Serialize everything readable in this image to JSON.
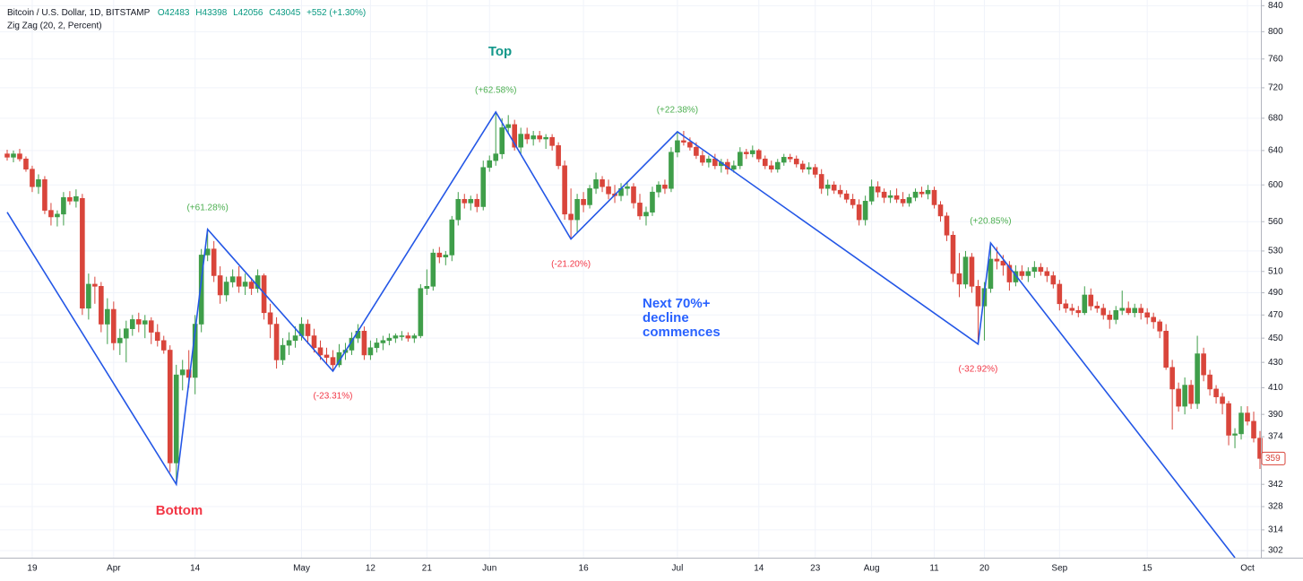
{
  "chart_data": {
    "type": "candlestick",
    "header": {
      "title": "Bitcoin / U.S. Dollar, 1D, BITSTAMP",
      "ohlc": [
        "O42483",
        "H43398",
        "L42056",
        "C43045"
      ],
      "change": "+552 (+1.30%)"
    },
    "annotations": {
      "top": "Top",
      "bottom": "Bottom",
      "note": [
        "Next 70%+",
        "decline",
        "commences"
      ]
    },
    "log_scale": true,
    "grid": true,
    "up_color": "#3f9e4a",
    "down_color": "#d9453b",
    "ylim": [
      298,
      849
    ],
    "yticks": [
      302,
      314,
      328,
      342,
      374,
      390,
      410,
      430,
      450,
      470,
      490,
      510,
      530,
      560,
      600,
      640,
      680,
      720,
      760,
      800,
      840
    ],
    "categories": [
      null,
      null,
      null,
      null,
      "19",
      null,
      null,
      null,
      null,
      null,
      null,
      null,
      null,
      null,
      null,
      null,
      null,
      "Apr",
      null,
      null,
      null,
      null,
      null,
      null,
      null,
      null,
      null,
      null,
      null,
      null,
      "14",
      null,
      null,
      null,
      null,
      null,
      null,
      null,
      null,
      null,
      null,
      null,
      null,
      null,
      null,
      null,
      null,
      "May",
      null,
      null,
      null,
      null,
      null,
      null,
      null,
      null,
      null,
      null,
      "12",
      null,
      null,
      null,
      null,
      null,
      null,
      null,
      null,
      "21",
      null,
      null,
      null,
      null,
      null,
      null,
      null,
      null,
      null,
      "Jun",
      null,
      null,
      null,
      null,
      null,
      null,
      null,
      null,
      null,
      null,
      null,
      null,
      null,
      null,
      "16",
      null,
      null,
      null,
      null,
      null,
      null,
      null,
      null,
      null,
      null,
      null,
      null,
      null,
      null,
      "Jul",
      null,
      null,
      null,
      null,
      null,
      null,
      null,
      null,
      null,
      null,
      null,
      null,
      "14",
      null,
      null,
      null,
      null,
      null,
      null,
      null,
      null,
      "23",
      null,
      null,
      null,
      null,
      null,
      null,
      null,
      null,
      "Aug",
      null,
      null,
      null,
      null,
      null,
      null,
      null,
      null,
      null,
      "11",
      null,
      null,
      null,
      null,
      null,
      null,
      null,
      "20",
      null,
      null,
      null,
      null,
      null,
      null,
      null,
      null,
      null,
      null,
      null,
      "Sep",
      null,
      null,
      null,
      null,
      null,
      null,
      null,
      null,
      null,
      null,
      null,
      null,
      null,
      "15",
      null,
      null,
      null,
      null,
      null,
      null,
      null,
      null,
      null,
      null,
      null,
      null,
      null,
      null,
      null,
      "Oct",
      null,
      null
    ],
    "ohlc": [
      [
        636,
        641,
        628,
        632
      ],
      [
        632,
        640,
        626,
        636
      ],
      [
        636,
        642,
        627,
        630
      ],
      [
        630,
        633,
        615,
        618
      ],
      [
        618,
        622,
        592,
        598
      ],
      [
        598,
        612,
        590,
        606
      ],
      [
        606,
        610,
        568,
        572
      ],
      [
        572,
        580,
        556,
        565
      ],
      [
        565,
        572,
        555,
        568
      ],
      [
        568,
        592,
        556,
        586
      ],
      [
        586,
        593,
        578,
        582
      ],
      [
        582,
        595,
        575,
        587
      ],
      [
        585,
        590,
        470,
        476
      ],
      [
        476,
        508,
        466,
        498
      ],
      [
        498,
        505,
        480,
        496
      ],
      [
        496,
        500,
        455,
        462
      ],
      [
        462,
        485,
        445,
        475
      ],
      [
        475,
        482,
        440,
        446
      ],
      [
        446,
        458,
        436,
        450
      ],
      [
        450,
        465,
        430,
        458
      ],
      [
        458,
        470,
        452,
        466
      ],
      [
        466,
        472,
        455,
        462
      ],
      [
        462,
        470,
        450,
        465
      ],
      [
        465,
        468,
        445,
        455
      ],
      [
        455,
        462,
        443,
        448
      ],
      [
        448,
        452,
        437,
        440
      ],
      [
        440,
        444,
        350,
        356
      ],
      [
        356,
        428,
        342,
        420
      ],
      [
        420,
        432,
        408,
        424
      ],
      [
        424,
        440,
        410,
        418
      ],
      [
        418,
        470,
        405,
        462
      ],
      [
        462,
        532,
        455,
        526
      ],
      [
        526,
        552,
        520,
        532
      ],
      [
        532,
        540,
        500,
        506
      ],
      [
        506,
        515,
        480,
        488
      ],
      [
        488,
        505,
        482,
        500
      ],
      [
        500,
        512,
        495,
        505
      ],
      [
        505,
        515,
        490,
        496
      ],
      [
        496,
        508,
        488,
        500
      ],
      [
        500,
        504,
        488,
        494
      ],
      [
        494,
        512,
        490,
        506
      ],
      [
        506,
        508,
        466,
        472
      ],
      [
        472,
        480,
        450,
        462
      ],
      [
        462,
        468,
        425,
        432
      ],
      [
        432,
        450,
        428,
        444
      ],
      [
        444,
        455,
        436,
        448
      ],
      [
        448,
        460,
        442,
        452
      ],
      [
        452,
        468,
        448,
        462
      ],
      [
        462,
        466,
        445,
        452
      ],
      [
        452,
        458,
        438,
        442
      ],
      [
        442,
        448,
        432,
        436
      ],
      [
        436,
        442,
        428,
        434
      ],
      [
        434,
        440,
        423,
        428
      ],
      [
        428,
        445,
        426,
        438
      ],
      [
        438,
        446,
        432,
        440
      ],
      [
        440,
        455,
        436,
        450
      ],
      [
        450,
        462,
        446,
        456
      ],
      [
        456,
        460,
        432,
        436
      ],
      [
        436,
        448,
        432,
        442
      ],
      [
        442,
        450,
        438,
        446
      ],
      [
        446,
        452,
        440,
        448
      ],
      [
        448,
        454,
        444,
        450
      ],
      [
        450,
        454,
        446,
        452
      ],
      [
        452,
        456,
        448,
        452
      ],
      [
        452,
        455,
        447,
        450
      ],
      [
        450,
        454,
        446,
        452
      ],
      [
        452,
        498,
        450,
        494
      ],
      [
        494,
        512,
        488,
        496
      ],
      [
        496,
        532,
        492,
        528
      ],
      [
        528,
        534,
        518,
        524
      ],
      [
        524,
        530,
        516,
        526
      ],
      [
        526,
        566,
        520,
        562
      ],
      [
        562,
        592,
        556,
        584
      ],
      [
        584,
        590,
        574,
        580
      ],
      [
        580,
        588,
        572,
        584
      ],
      [
        584,
        590,
        570,
        576
      ],
      [
        576,
        628,
        572,
        620
      ],
      [
        620,
        634,
        615,
        628
      ],
      [
        628,
        688,
        622,
        636
      ],
      [
        636,
        680,
        630,
        668
      ],
      [
        668,
        684,
        660,
        672
      ],
      [
        672,
        678,
        640,
        644
      ],
      [
        644,
        668,
        636,
        660
      ],
      [
        660,
        668,
        648,
        654
      ],
      [
        654,
        664,
        646,
        658
      ],
      [
        658,
        664,
        650,
        654
      ],
      [
        654,
        660,
        642,
        656
      ],
      [
        656,
        660,
        640,
        646
      ],
      [
        646,
        650,
        618,
        622
      ],
      [
        622,
        628,
        562,
        568
      ],
      [
        568,
        596,
        542,
        562
      ],
      [
        562,
        590,
        548,
        584
      ],
      [
        584,
        592,
        570,
        578
      ],
      [
        578,
        600,
        574,
        596
      ],
      [
        596,
        614,
        590,
        606
      ],
      [
        606,
        610,
        592,
        598
      ],
      [
        598,
        606,
        584,
        590
      ],
      [
        590,
        600,
        580,
        588
      ],
      [
        588,
        602,
        582,
        596
      ],
      [
        596,
        604,
        588,
        598
      ],
      [
        598,
        602,
        574,
        580
      ],
      [
        580,
        590,
        562,
        566
      ],
      [
        566,
        576,
        556,
        570
      ],
      [
        570,
        598,
        566,
        592
      ],
      [
        592,
        604,
        586,
        600
      ],
      [
        600,
        606,
        590,
        596
      ],
      [
        596,
        644,
        592,
        638
      ],
      [
        638,
        663,
        632,
        652
      ],
      [
        652,
        664,
        646,
        650
      ],
      [
        650,
        656,
        640,
        644
      ],
      [
        644,
        650,
        630,
        634
      ],
      [
        634,
        640,
        622,
        626
      ],
      [
        626,
        634,
        620,
        630
      ],
      [
        630,
        636,
        618,
        622
      ],
      [
        622,
        630,
        614,
        626
      ],
      [
        626,
        630,
        612,
        618
      ],
      [
        618,
        628,
        614,
        622
      ],
      [
        622,
        644,
        618,
        638
      ],
      [
        638,
        642,
        630,
        636
      ],
      [
        636,
        646,
        632,
        640
      ],
      [
        640,
        642,
        626,
        630
      ],
      [
        630,
        634,
        618,
        622
      ],
      [
        622,
        628,
        614,
        618
      ],
      [
        618,
        630,
        614,
        626
      ],
      [
        626,
        636,
        622,
        632
      ],
      [
        632,
        636,
        626,
        630
      ],
      [
        630,
        634,
        620,
        624
      ],
      [
        624,
        628,
        614,
        618
      ],
      [
        618,
        626,
        612,
        620
      ],
      [
        620,
        624,
        608,
        612
      ],
      [
        612,
        618,
        590,
        596
      ],
      [
        596,
        606,
        588,
        600
      ],
      [
        600,
        604,
        590,
        594
      ],
      [
        594,
        600,
        586,
        590
      ],
      [
        590,
        594,
        580,
        584
      ],
      [
        584,
        590,
        574,
        578
      ],
      [
        578,
        584,
        556,
        562
      ],
      [
        562,
        588,
        556,
        582
      ],
      [
        582,
        606,
        578,
        598
      ],
      [
        598,
        604,
        586,
        592
      ],
      [
        592,
        596,
        580,
        586
      ],
      [
        586,
        594,
        580,
        588
      ],
      [
        588,
        596,
        580,
        584
      ],
      [
        584,
        592,
        576,
        580
      ],
      [
        580,
        590,
        576,
        586
      ],
      [
        586,
        596,
        582,
        592
      ],
      [
        592,
        598,
        586,
        590
      ],
      [
        590,
        600,
        584,
        594
      ],
      [
        594,
        598,
        574,
        578
      ],
      [
        578,
        582,
        560,
        566
      ],
      [
        566,
        570,
        540,
        546
      ],
      [
        546,
        550,
        500,
        508
      ],
      [
        508,
        528,
        486,
        498
      ],
      [
        498,
        530,
        494,
        524
      ],
      [
        524,
        528,
        490,
        496
      ],
      [
        496,
        502,
        445,
        478
      ],
      [
        478,
        500,
        448,
        494
      ],
      [
        494,
        538,
        490,
        522
      ],
      [
        522,
        534,
        512,
        520
      ],
      [
        520,
        526,
        506,
        516
      ],
      [
        516,
        520,
        492,
        500
      ],
      [
        500,
        516,
        496,
        510
      ],
      [
        510,
        516,
        502,
        506
      ],
      [
        506,
        514,
        500,
        510
      ],
      [
        510,
        520,
        504,
        514
      ],
      [
        514,
        518,
        506,
        510
      ],
      [
        510,
        514,
        500,
        506
      ],
      [
        506,
        510,
        494,
        498
      ],
      [
        498,
        502,
        474,
        480
      ],
      [
        480,
        484,
        472,
        476
      ],
      [
        476,
        480,
        470,
        474
      ],
      [
        474,
        478,
        468,
        472
      ],
      [
        472,
        496,
        470,
        488
      ],
      [
        488,
        494,
        474,
        478
      ],
      [
        478,
        482,
        472,
        476
      ],
      [
        476,
        480,
        466,
        470
      ],
      [
        470,
        474,
        458,
        466
      ],
      [
        466,
        478,
        462,
        474
      ],
      [
        474,
        492,
        470,
        476
      ],
      [
        476,
        482,
        470,
        472
      ],
      [
        472,
        480,
        468,
        476
      ],
      [
        476,
        480,
        466,
        472
      ],
      [
        472,
        476,
        462,
        468
      ],
      [
        468,
        472,
        458,
        464
      ],
      [
        464,
        466,
        450,
        456
      ],
      [
        456,
        462,
        424,
        426
      ],
      [
        426,
        432,
        379,
        409
      ],
      [
        409,
        414,
        392,
        396
      ],
      [
        396,
        418,
        390,
        412
      ],
      [
        412,
        416,
        394,
        398
      ],
      [
        398,
        452,
        394,
        437
      ],
      [
        437,
        442,
        415,
        420
      ],
      [
        420,
        424,
        404,
        409
      ],
      [
        409,
        412,
        398,
        403
      ],
      [
        403,
        406,
        390,
        398
      ],
      [
        398,
        400,
        368,
        375
      ],
      [
        375,
        380,
        366,
        376
      ],
      [
        376,
        396,
        372,
        391
      ],
      [
        391,
        396,
        382,
        385
      ],
      [
        385,
        392,
        370,
        373
      ],
      [
        373,
        378,
        352,
        359
      ]
    ],
    "zigzag": {
      "name": "Zig Zag (20, 2, Percent)",
      "color": "#2457e6",
      "x": [
        0,
        27,
        32,
        52,
        78,
        90,
        107,
        155,
        157,
        196
      ],
      "values": [
        570,
        342,
        552,
        423,
        688,
        542,
        663,
        445,
        538,
        298
      ],
      "labels": [
        null,
        null,
        "(+61.28%)",
        "(-23.31%)",
        "(+62.58%)",
        "(-21.20%)",
        "(+22.38%)",
        "(-32.92%)",
        "(+20.85%)",
        null
      ]
    }
  }
}
